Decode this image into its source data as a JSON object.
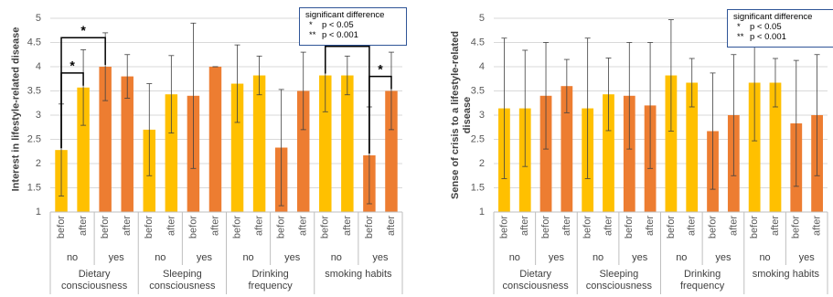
{
  "chart_data": [
    {
      "type": "bar",
      "ylabel": "Interest in lifestyle-related disease",
      "categories": [
        "befor",
        "after",
        "befor",
        "after",
        "befor",
        "after",
        "befor",
        "after",
        "befor",
        "after",
        "befor",
        "after",
        "befor",
        "after",
        "befor",
        "after"
      ],
      "groups": [
        "no",
        "yes",
        "no",
        "yes",
        "no",
        "yes",
        "no",
        "yes"
      ],
      "main": [
        "Dietary consciousness",
        "Sleeping consciousness",
        "Drinking frequency",
        "smoking habits"
      ],
      "group_colors": [
        "#FFC000",
        "#ED7D31"
      ],
      "values": [
        2.28,
        3.57,
        4.0,
        3.8,
        2.7,
        3.43,
        3.4,
        4.0,
        3.65,
        3.82,
        2.33,
        3.5,
        3.82,
        3.82,
        2.17,
        3.5
      ],
      "errors": [
        0.95,
        0.78,
        0.7,
        0.45,
        0.95,
        0.8,
        1.5,
        0,
        0.8,
        0.4,
        1.2,
        0.8,
        0.75,
        0.4,
        1.0,
        0.8
      ],
      "ylim": [
        1,
        5
      ],
      "yticks": [
        1,
        1.5,
        2,
        2.5,
        3,
        3.5,
        4,
        4.5,
        5
      ],
      "grid": true,
      "brackets": [
        {
          "pair": [
            0,
            1
          ],
          "label": "*"
        },
        {
          "pair": [
            0,
            2
          ],
          "label": "*"
        },
        {
          "pair": [
            12,
            14
          ],
          "label": "*"
        },
        {
          "pair": [
            14,
            15
          ],
          "label": "*"
        }
      ],
      "legend": {
        "title": "significant difference",
        "items": [
          {
            "symbol": "*",
            "text": "p < 0.05"
          },
          {
            "symbol": "**",
            "text": "p < 0.001"
          }
        ]
      }
    },
    {
      "type": "bar",
      "ylabel": "Sense of crisis to a lifestyle-related disease",
      "categories": [
        "befor",
        "after",
        "befor",
        "after",
        "befor",
        "after",
        "befor",
        "after",
        "befor",
        "after",
        "befor",
        "after",
        "befor",
        "after",
        "befor",
        "after"
      ],
      "groups": [
        "no",
        "yes",
        "no",
        "yes",
        "no",
        "yes",
        "no",
        "yes"
      ],
      "main": [
        "Dietary consciousness",
        "Sleeping consciousness",
        "Drinking frequency",
        "smoking habits"
      ],
      "group_colors": [
        "#FFC000",
        "#ED7D31"
      ],
      "values": [
        3.14,
        3.14,
        3.4,
        3.6,
        3.14,
        3.43,
        3.4,
        3.2,
        3.82,
        3.67,
        2.67,
        3.0,
        3.67,
        3.67,
        2.83,
        3.0
      ],
      "errors": [
        1.45,
        1.2,
        1.1,
        0.55,
        1.45,
        0.75,
        1.1,
        1.3,
        1.15,
        0.5,
        1.2,
        1.25,
        1.2,
        0.5,
        1.3,
        1.25
      ],
      "ylim": [
        1,
        5
      ],
      "yticks": [
        1,
        1.5,
        2,
        2.5,
        3,
        3.5,
        4,
        4.5,
        5
      ],
      "grid": true,
      "legend": {
        "title": "significant difference",
        "items": [
          {
            "symbol": "*",
            "text": "p < 0.05"
          },
          {
            "symbol": "**",
            "text": "p < 0.001"
          }
        ]
      }
    }
  ]
}
